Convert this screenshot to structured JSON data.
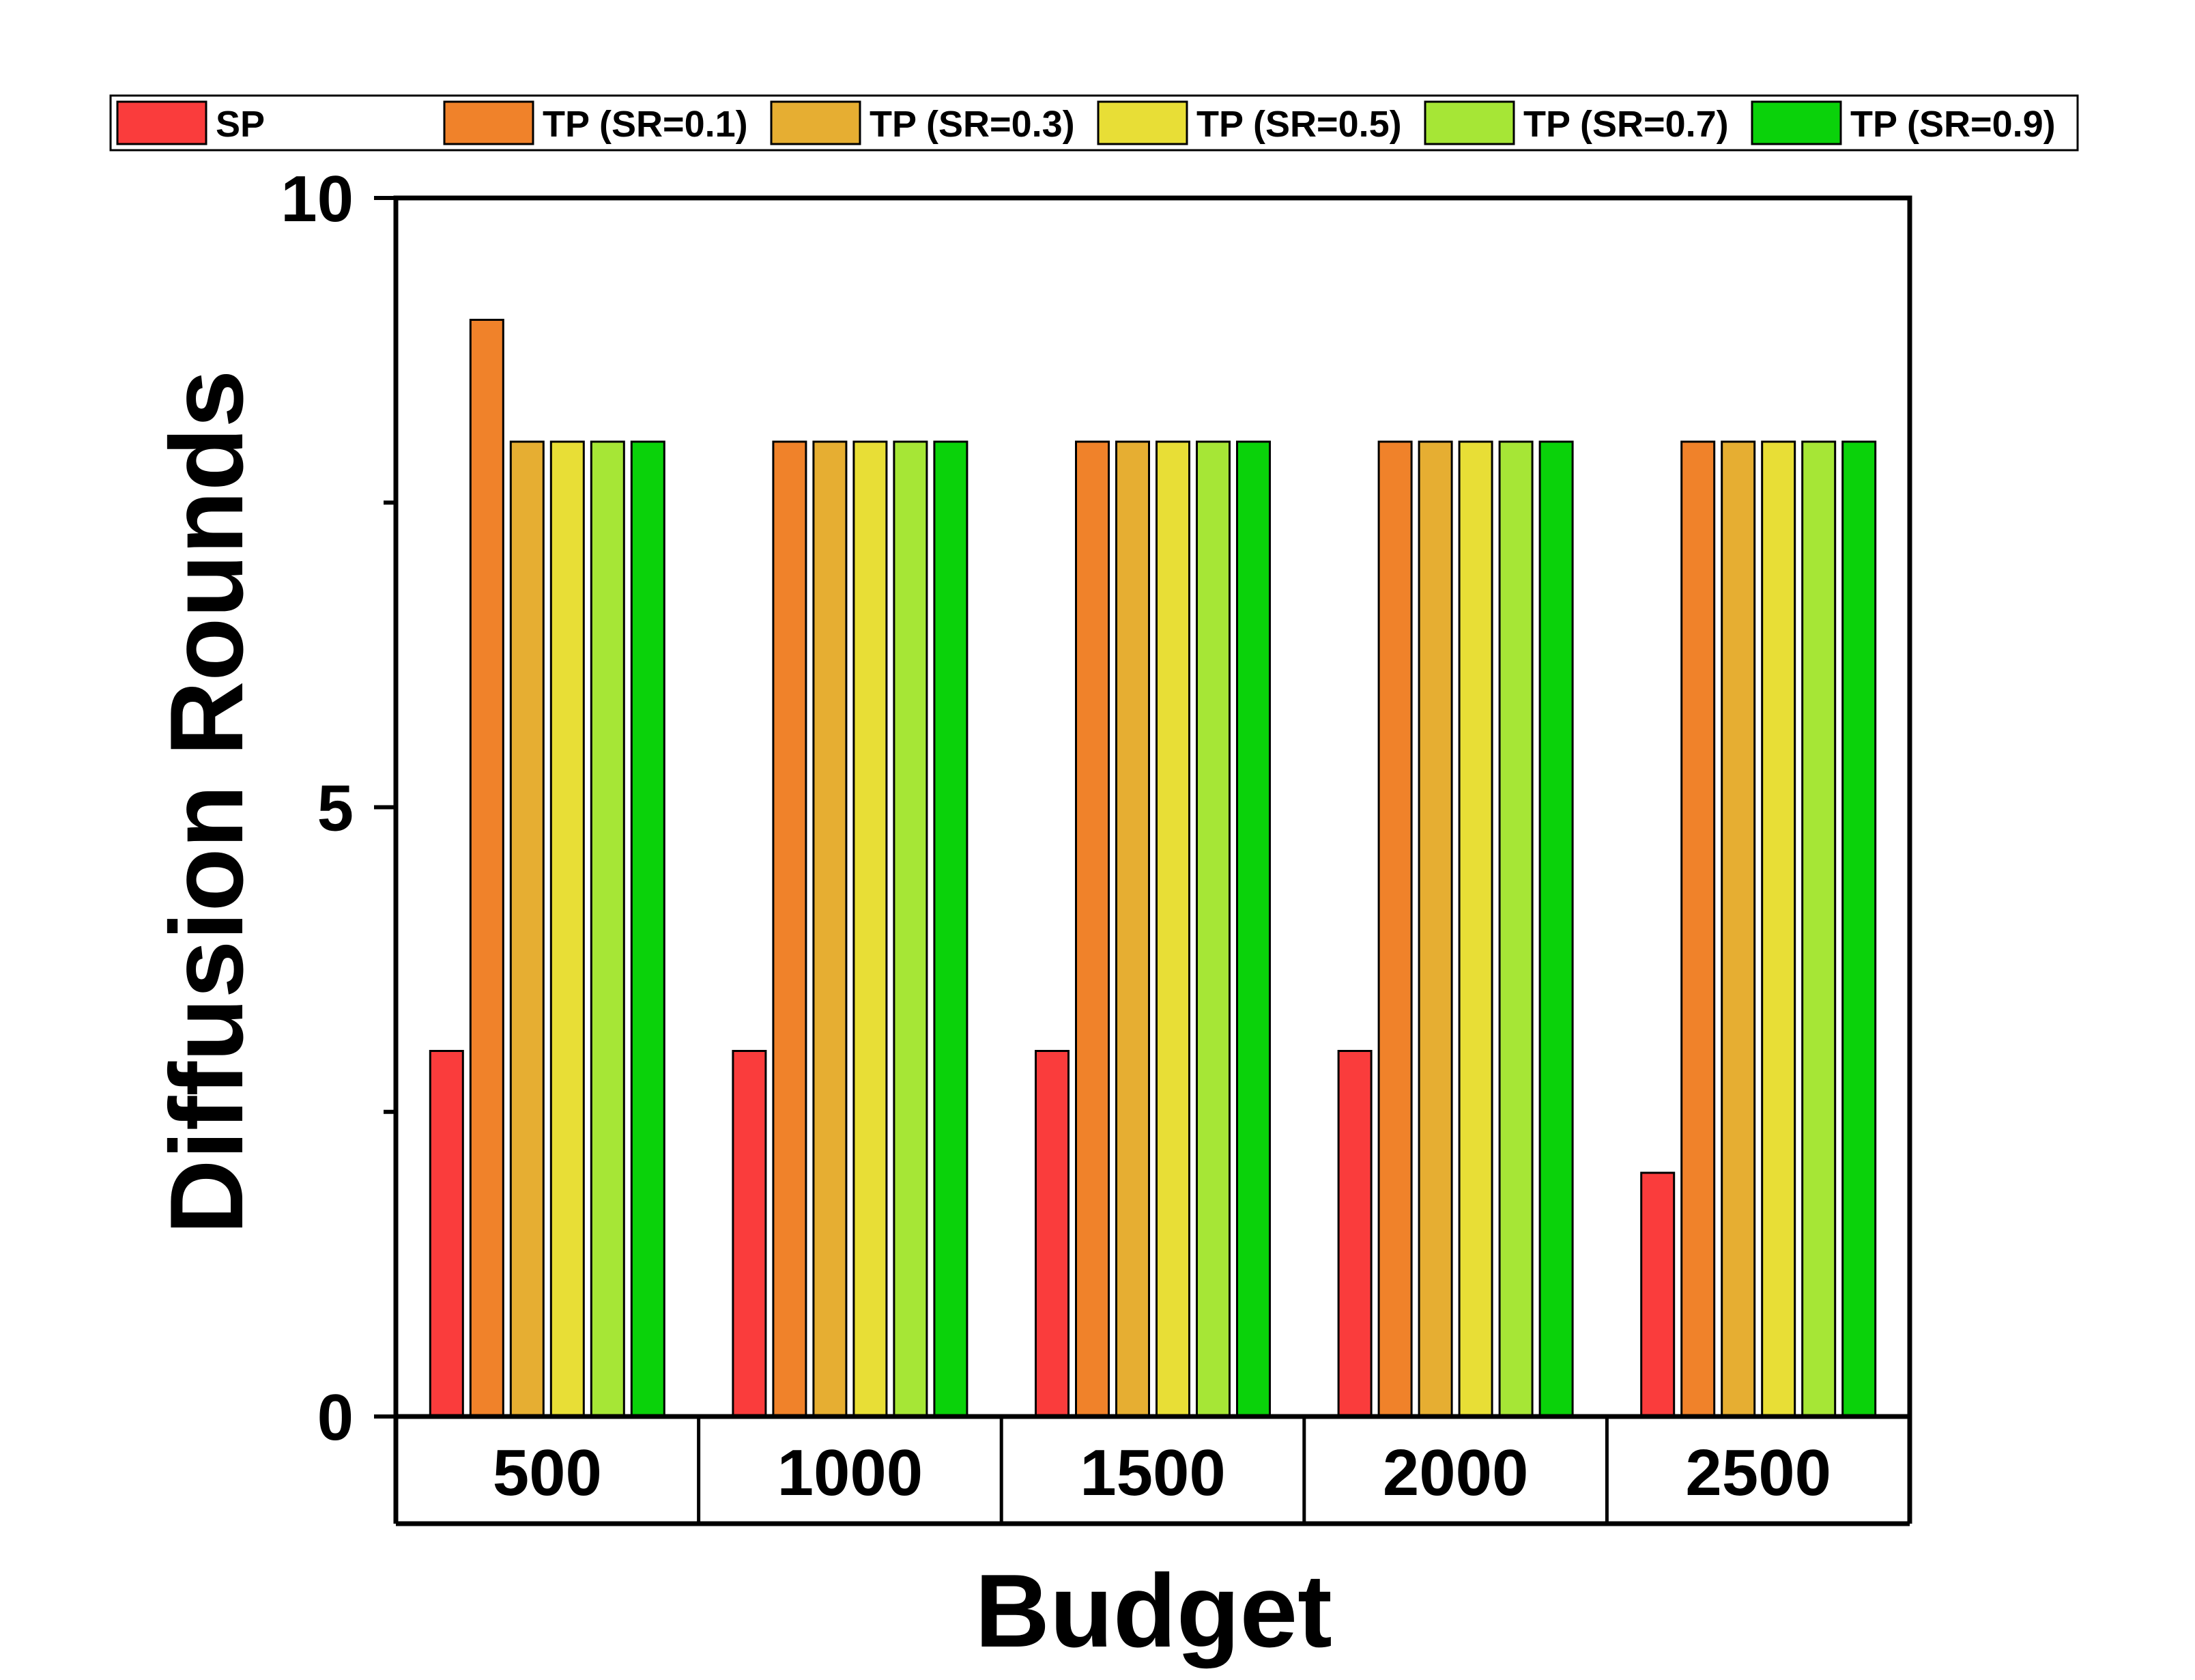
{
  "chart_data": {
    "type": "bar",
    "title": "",
    "xlabel": "Budget",
    "ylabel": "Diffusion Rounds",
    "categories": [
      "500",
      "1000",
      "1500",
      "2000",
      "2500"
    ],
    "ylim": [
      0,
      10
    ],
    "yticks": [
      "0",
      "5",
      "10"
    ],
    "grid": false,
    "legend_position": "top",
    "series": [
      {
        "name": "SP",
        "color": "#fa3c3c",
        "values": [
          3,
          3,
          3,
          3,
          2
        ]
      },
      {
        "name": "TP (SR=0.1)",
        "color": "#f0822a",
        "values": [
          9,
          8,
          8,
          8,
          8
        ]
      },
      {
        "name": "TP (SR=0.3)",
        "color": "#e6ae32",
        "values": [
          8,
          8,
          8,
          8,
          8
        ]
      },
      {
        "name": "TP (SR=0.5)",
        "color": "#e8de36",
        "values": [
          8,
          8,
          8,
          8,
          8
        ]
      },
      {
        "name": "TP (SR=0.7)",
        "color": "#a6e636",
        "values": [
          8,
          8,
          8,
          8,
          8
        ]
      },
      {
        "name": "TP (SR=0.9)",
        "color": "#0ad20a",
        "values": [
          8,
          8,
          8,
          8,
          8
        ]
      }
    ]
  }
}
